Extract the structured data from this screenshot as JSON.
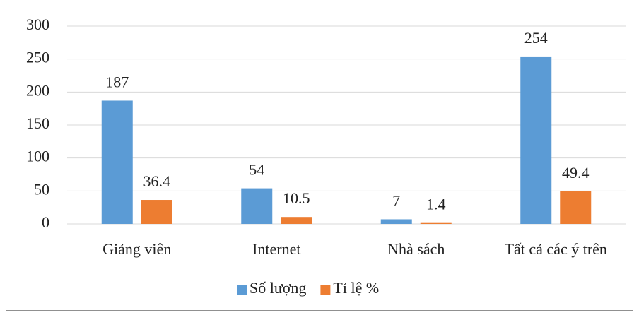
{
  "chart_data": {
    "type": "bar",
    "categories": [
      "Giảng viên",
      "Internet",
      "Nhà sách",
      "Tất cả các ý trên"
    ],
    "series": [
      {
        "name": "Số lượng",
        "color": "#5b9bd5",
        "values": [
          187,
          54,
          7,
          254
        ]
      },
      {
        "name": "Tỉ lệ %",
        "color": "#ed7d31",
        "values": [
          36.4,
          10.5,
          1.4,
          49.4
        ]
      }
    ],
    "ylim": [
      0,
      300
    ],
    "yticks": [
      0,
      50,
      100,
      150,
      200,
      250,
      300
    ],
    "grid": true,
    "legend": "bottom"
  }
}
